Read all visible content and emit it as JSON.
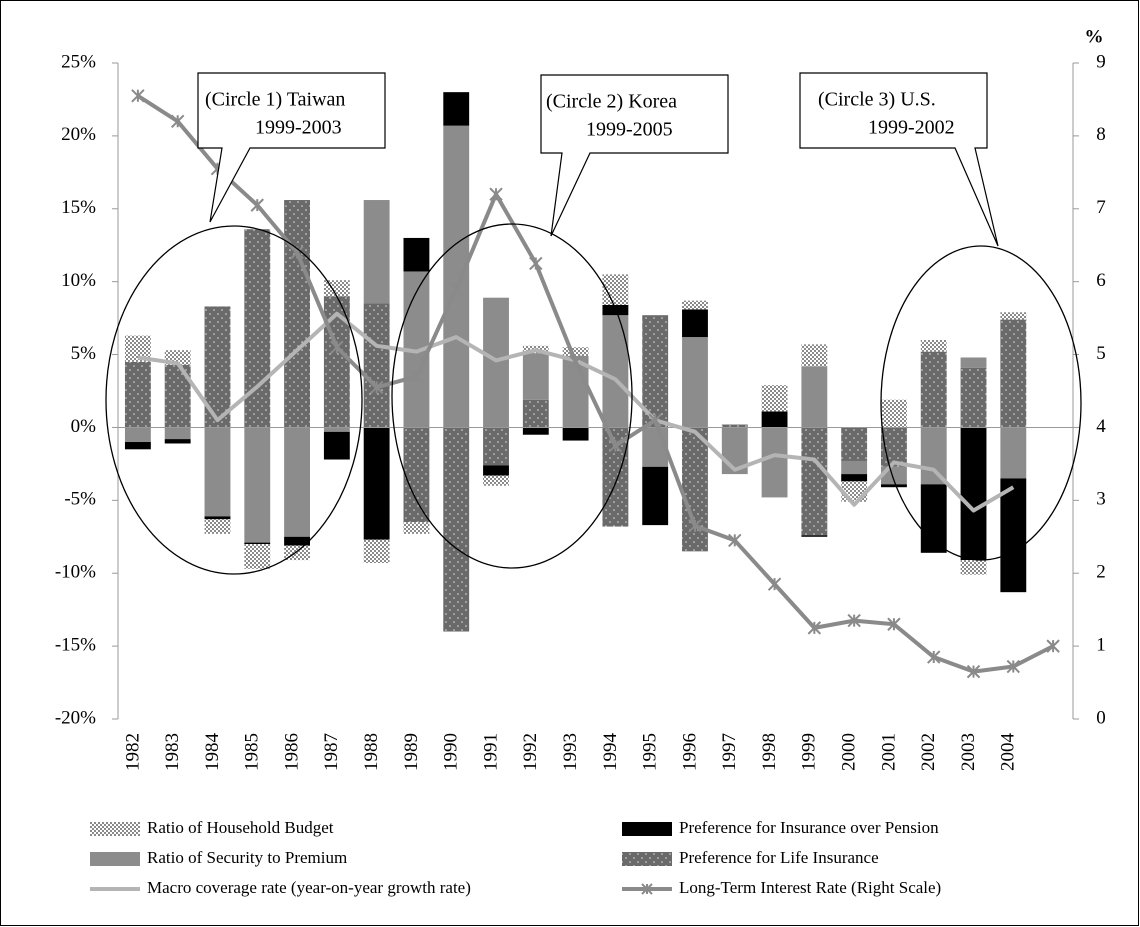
{
  "chart_data": {
    "type": "bar",
    "y2_label": "%",
    "categories": [
      "1982",
      "1983",
      "1984",
      "1985",
      "1986",
      "1987",
      "1988",
      "1989",
      "1990",
      "1991",
      "1992",
      "1993",
      "1994",
      "1995",
      "1996",
      "1997",
      "1998",
      "1999",
      "2000",
      "2001",
      "2002",
      "2003",
      "2004",
      null
    ],
    "ylim": [
      -20,
      25
    ],
    "yticks": [
      {
        "value": -20,
        "label": "-20%"
      },
      {
        "value": -15,
        "label": "-15%"
      },
      {
        "value": -10,
        "label": "-10%"
      },
      {
        "value": -5,
        "label": "-5%"
      },
      {
        "value": 0,
        "label": "0%"
      },
      {
        "value": 5,
        "label": "5%"
      },
      {
        "value": 10,
        "label": "10%"
      },
      {
        "value": 15,
        "label": "15%"
      },
      {
        "value": 20,
        "label": "20%"
      },
      {
        "value": 25,
        "label": "25%"
      }
    ],
    "y2lim": [
      0,
      9
    ],
    "y2ticks": [
      0,
      1,
      2,
      3,
      4,
      5,
      6,
      7,
      8,
      9
    ],
    "series": [
      {
        "name": "Ratio of Household Budget",
        "type": "bar",
        "pattern": "checker",
        "color": "#8a8a8a",
        "values": [
          1.8,
          1.0,
          -1.0,
          -1.7,
          -1.0,
          1.1,
          -1.6,
          -0.8,
          0,
          -0.7,
          0.5,
          0.6,
          2.1,
          0,
          0.6,
          0,
          1.8,
          1.5,
          -1.4,
          1.9,
          0.8,
          -1.0,
          0.5,
          null
        ]
      },
      {
        "name": "Preference for Insurance over Pension",
        "type": "bar",
        "pattern": "solid",
        "color": "#000000",
        "values": [
          -0.5,
          -0.3,
          -0.2,
          -0.1,
          -0.6,
          -1.9,
          -7.7,
          2.3,
          2.3,
          -0.7,
          -0.5,
          -0.9,
          0.7,
          -4.0,
          1.9,
          0,
          1.1,
          -0.1,
          -0.5,
          -0.2,
          -4.7,
          -9.1,
          -7.8,
          null
        ]
      },
      {
        "name": "Ratio of Security to Premium",
        "type": "bar",
        "pattern": "solid",
        "color": "#8c8c8c",
        "values": [
          -1.0,
          -0.8,
          -6.1,
          -7.9,
          -7.5,
          -0.3,
          7.1,
          10.7,
          20.7,
          8.9,
          3.2,
          4.9,
          7.7,
          -2.7,
          6.2,
          -3.2,
          -4.8,
          4.2,
          -0.9,
          -1.2,
          -3.9,
          0.7,
          -3.5,
          null
        ]
      },
      {
        "name": "Preference for Life Insurance",
        "type": "bar",
        "pattern": "dots",
        "color": "#6a6a6a",
        "values": [
          4.5,
          4.3,
          8.3,
          13.6,
          15.6,
          9.0,
          8.5,
          -6.5,
          -14.0,
          -2.6,
          1.9,
          0,
          -6.8,
          7.7,
          -8.5,
          0.2,
          0,
          -7.4,
          -2.3,
          -2.7,
          5.2,
          4.1,
          7.4,
          null
        ]
      },
      {
        "name": "Macro coverage rate (year-on-year growth rate)",
        "type": "line",
        "color": "#b4b4b4",
        "values": [
          4.8,
          4.4,
          0.5,
          2.8,
          5.3,
          7.8,
          5.6,
          5.2,
          6.2,
          4.6,
          5.3,
          4.6,
          3.3,
          0.5,
          -0.3,
          -2.9,
          -1.9,
          -2.2,
          -5.3,
          -2.4,
          -2.9,
          -5.7,
          -4.1,
          null
        ]
      },
      {
        "name": "Long-Term Interest Rate (Right Scale)",
        "type": "line",
        "axis": "y2",
        "marker": "asterisk",
        "color": "#8a8a8a",
        "values": [
          8.55,
          8.2,
          7.55,
          7.05,
          6.4,
          5.1,
          4.55,
          4.7,
          5.9,
          7.2,
          6.25,
          4.9,
          3.75,
          4.1,
          2.65,
          2.45,
          1.85,
          1.25,
          1.35,
          1.3,
          0.85,
          0.65,
          0.72,
          1.0
        ]
      }
    ],
    "annotations": [
      {
        "lines": [
          "(Circle 1) Taiwan",
          "1999-2003"
        ]
      },
      {
        "lines": [
          "(Circle 2) Korea",
          "1999-2005"
        ]
      },
      {
        "lines": [
          "(Circle 3) U.S.",
          "1999-2002"
        ]
      }
    ]
  }
}
